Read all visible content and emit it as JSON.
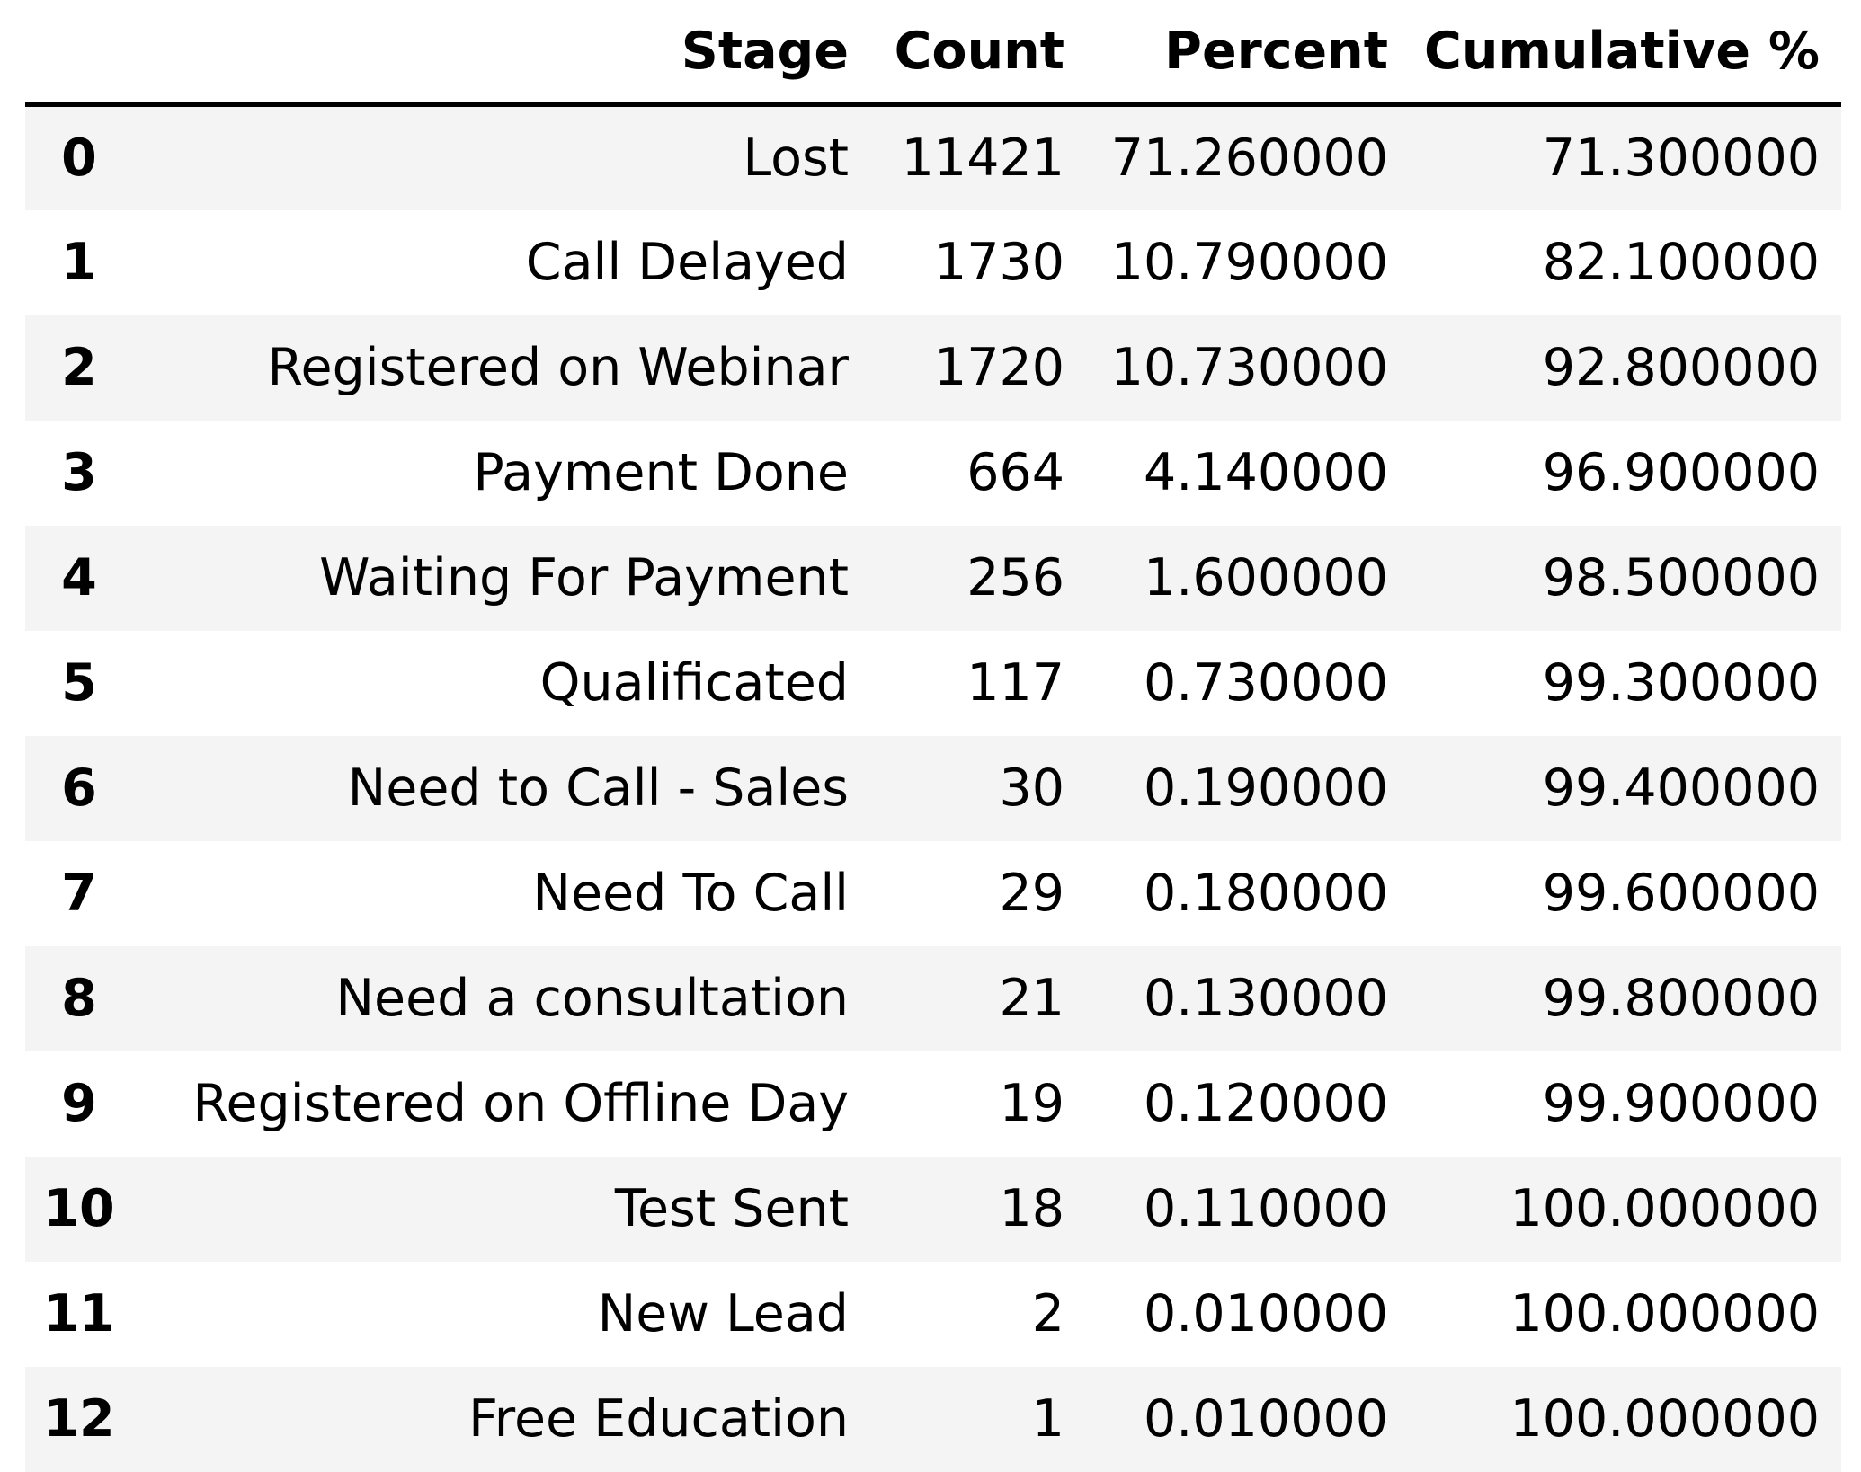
{
  "table": {
    "columns": {
      "index": "",
      "stage": "Stage",
      "count": "Count",
      "percent": "Percent",
      "cumulative": "Cumulative %"
    },
    "rows": [
      {
        "index": "0",
        "stage": "Lost",
        "count": "11421",
        "percent": "71.260000",
        "cumulative": "71.300000"
      },
      {
        "index": "1",
        "stage": "Call Delayed",
        "count": "1730",
        "percent": "10.790000",
        "cumulative": "82.100000"
      },
      {
        "index": "2",
        "stage": "Registered on Webinar",
        "count": "1720",
        "percent": "10.730000",
        "cumulative": "92.800000"
      },
      {
        "index": "3",
        "stage": "Payment Done",
        "count": "664",
        "percent": "4.140000",
        "cumulative": "96.900000"
      },
      {
        "index": "4",
        "stage": "Waiting For Payment",
        "count": "256",
        "percent": "1.600000",
        "cumulative": "98.500000"
      },
      {
        "index": "5",
        "stage": "Qualificated",
        "count": "117",
        "percent": "0.730000",
        "cumulative": "99.300000"
      },
      {
        "index": "6",
        "stage": "Need to Call - Sales",
        "count": "30",
        "percent": "0.190000",
        "cumulative": "99.400000"
      },
      {
        "index": "7",
        "stage": "Need To Call",
        "count": "29",
        "percent": "0.180000",
        "cumulative": "99.600000"
      },
      {
        "index": "8",
        "stage": "Need a consultation",
        "count": "21",
        "percent": "0.130000",
        "cumulative": "99.800000"
      },
      {
        "index": "9",
        "stage": "Registered on Offline Day",
        "count": "19",
        "percent": "0.120000",
        "cumulative": "99.900000"
      },
      {
        "index": "10",
        "stage": "Test Sent",
        "count": "18",
        "percent": "0.110000",
        "cumulative": "100.000000"
      },
      {
        "index": "11",
        "stage": "New Lead",
        "count": "2",
        "percent": "0.010000",
        "cumulative": "100.000000"
      },
      {
        "index": "12",
        "stage": "Free Education",
        "count": "1",
        "percent": "0.010000",
        "cumulative": "100.000000"
      }
    ]
  },
  "colors": {
    "stripe": "#f4f4f4",
    "header_rule": "#000000",
    "text": "#000000"
  }
}
